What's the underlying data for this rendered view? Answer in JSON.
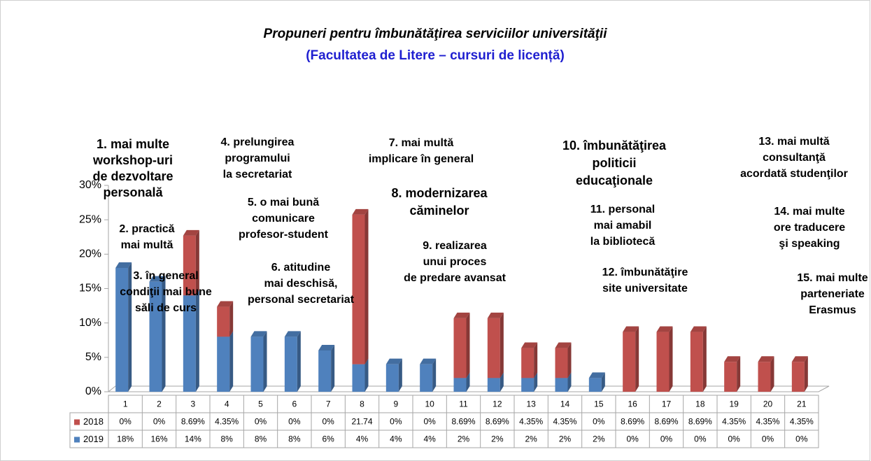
{
  "chart_data": {
    "type": "bar3d_stacked",
    "title": "Propuneri pentru îmbunătăţirea  serviciilor universităţii",
    "subtitle": "(Facultatea de Litere – cursuri de licență)",
    "categories": [
      "1",
      "2",
      "3",
      "4",
      "5",
      "6",
      "7",
      "8",
      "9",
      "10",
      "11",
      "12",
      "13",
      "14",
      "15",
      "16",
      "17",
      "18",
      "19",
      "20",
      "21"
    ],
    "series": [
      {
        "name": "2019",
        "color": "#4f81bd",
        "values": [
          18,
          16,
          14,
          8,
          8,
          8,
          6,
          4,
          4,
          4,
          2,
          2,
          2,
          2,
          2,
          0,
          0,
          0,
          0,
          0,
          0
        ],
        "value_labels": [
          "18%",
          "16%",
          "14%",
          "8%",
          "8%",
          "8%",
          "6%",
          "4%",
          "4%",
          "4%",
          "2%",
          "2%",
          "2%",
          "2%",
          "2%",
          "0%",
          "0%",
          "0%",
          "0%",
          "0%",
          "0%"
        ]
      },
      {
        "name": "2018",
        "color": "#c0504d",
        "values": [
          0,
          0,
          8.69,
          4.35,
          0,
          0,
          0,
          21.74,
          0,
          0,
          8.69,
          8.69,
          4.35,
          4.35,
          0,
          8.69,
          8.69,
          8.69,
          4.35,
          4.35,
          4.35
        ],
        "value_labels": [
          "0%",
          "0%",
          "8.69%",
          "4.35%",
          "0%",
          "0%",
          "0%",
          "21.74",
          "0%",
          "0%",
          "8.69%",
          "8.69%",
          "4.35%",
          "4.35%",
          "0%",
          "8.69%",
          "8.69%",
          "8.69%",
          "4.35%",
          "4.35%",
          "4.35%"
        ]
      }
    ],
    "ylim": [
      0,
      30
    ],
    "yticks": [
      {
        "value": 0,
        "label": "0%"
      },
      {
        "value": 5,
        "label": "5%"
      },
      {
        "value": 10,
        "label": "10%"
      },
      {
        "value": 15,
        "label": "15%"
      },
      {
        "value": 20,
        "label": "20%"
      },
      {
        "value": 25,
        "label": "25%"
      },
      {
        "value": 30,
        "label": "30%"
      }
    ],
    "annotations": [
      [
        "1. mai multe",
        "workshop-uri",
        "de dezvoltare",
        "personală"
      ],
      [
        "2. practică",
        "mai multă"
      ],
      [
        "3. în general",
        "condiţii mai bune",
        "săli de curs"
      ],
      [
        "4. prelungirea",
        "programului",
        "la secretariat"
      ],
      [
        "5. o mai bună",
        "comunicare",
        "profesor-student"
      ],
      [
        "6. atitudine",
        "mai deschisă,",
        "personal secretariat"
      ],
      [
        "7. mai multă",
        "implicare în general"
      ],
      [
        "8. modernizarea",
        "căminelor"
      ],
      [
        "9. realizarea",
        "unui proces",
        "de predare avansat"
      ],
      [
        "10. îmbunătăţirea",
        "politicii",
        "educaţionale"
      ],
      [
        "11. personal",
        "mai amabil",
        "la bibliotecă"
      ],
      [
        "12. îmbunătăţire",
        "site universitate"
      ],
      [
        "13. mai multă",
        "consultanţă",
        "acordată studenţilor"
      ],
      [
        "14. mai multe",
        "ore traducere",
        "şi speaking"
      ],
      [
        "15. mai multe",
        "parteneriate",
        "Erasmus"
      ]
    ]
  }
}
